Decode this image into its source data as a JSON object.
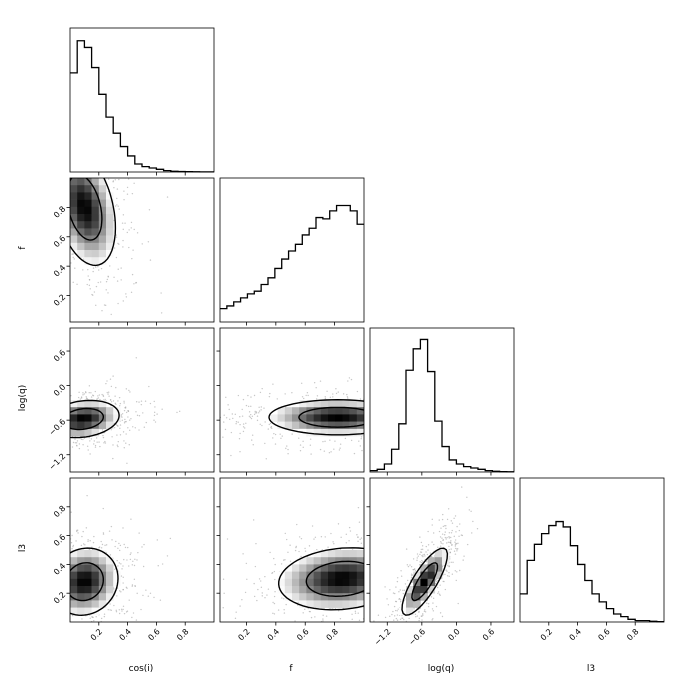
{
  "chart_data": {
    "type": "corner",
    "parameters": [
      {
        "key": "cosi",
        "label": "cos(i)",
        "range": [
          0.0,
          1.0
        ],
        "ticks": [
          0.2,
          0.4,
          0.6,
          0.8
        ],
        "tick_labels": [
          "0.2",
          "0.4",
          "0.6",
          "0.8"
        ]
      },
      {
        "key": "f",
        "label": "f",
        "range": [
          0.02,
          1.0
        ],
        "ticks": [
          0.2,
          0.4,
          0.6,
          0.8
        ],
        "tick_labels": [
          "0.2",
          "0.4",
          "0.6",
          "0.8"
        ]
      },
      {
        "key": "logq",
        "label": "log(q)",
        "range": [
          -1.5,
          1.0
        ],
        "ticks": [
          -1.2,
          -0.6,
          0.0,
          0.6
        ],
        "tick_labels": [
          "−1.2",
          "−0.6",
          "0.0",
          "0.6"
        ]
      },
      {
        "key": "l3",
        "label": "l3",
        "range": [
          0.0,
          1.0
        ],
        "ticks": [
          0.2,
          0.4,
          0.6,
          0.8
        ],
        "tick_labels": [
          "0.2",
          "0.4",
          "0.6",
          "0.8"
        ]
      }
    ],
    "histograms": [
      {
        "param": "cosi",
        "bin_edges_range": [
          0.0,
          1.0
        ],
        "counts": [
          0.74,
          0.98,
          0.93,
          0.78,
          0.58,
          0.41,
          0.29,
          0.19,
          0.12,
          0.06,
          0.04,
          0.03,
          0.02,
          0.01,
          0.005,
          0.004,
          0.003,
          0.002,
          0.001,
          0.001
        ]
      },
      {
        "param": "f",
        "bin_edges_range": [
          0.02,
          1.0
        ],
        "counts": [
          0.1,
          0.12,
          0.15,
          0.18,
          0.21,
          0.23,
          0.28,
          0.33,
          0.4,
          0.47,
          0.53,
          0.58,
          0.65,
          0.7,
          0.78,
          0.77,
          0.83,
          0.87,
          0.87,
          0.83,
          0.73
        ]
      },
      {
        "param": "logq",
        "bin_edges_range": [
          -1.5,
          1.0
        ],
        "counts": [
          0.01,
          0.02,
          0.06,
          0.17,
          0.36,
          0.76,
          0.92,
          0.99,
          0.75,
          0.38,
          0.19,
          0.09,
          0.06,
          0.04,
          0.03,
          0.02,
          0.01,
          0.005,
          0.003,
          0.002
        ]
      },
      {
        "param": "l3",
        "bin_edges_range": [
          0.0,
          1.0
        ],
        "counts": [
          0.21,
          0.46,
          0.58,
          0.66,
          0.72,
          0.75,
          0.71,
          0.57,
          0.43,
          0.31,
          0.21,
          0.15,
          0.1,
          0.06,
          0.04,
          0.02,
          0.01,
          0.01,
          0.005,
          0.003
        ]
      }
    ],
    "joint_distributions": [
      {
        "x": "cosi",
        "y": "f",
        "peak": [
          0.1,
          0.8
        ],
        "sigma": [
          0.12,
          0.22
        ],
        "corr": -0.35
      },
      {
        "x": "cosi",
        "y": "logq",
        "peak": [
          0.09,
          -0.58
        ],
        "sigma": [
          0.14,
          0.18
        ],
        "corr": 0.2
      },
      {
        "x": "f",
        "y": "logq",
        "peak": [
          0.82,
          -0.55
        ],
        "sigma": [
          0.26,
          0.17
        ],
        "corr": 0.0
      },
      {
        "x": "cosi",
        "y": "l3",
        "peak": [
          0.1,
          0.28
        ],
        "sigma": [
          0.13,
          0.13
        ],
        "corr": 0.1
      },
      {
        "x": "f",
        "y": "l3",
        "peak": [
          0.85,
          0.3
        ],
        "sigma": [
          0.24,
          0.12
        ],
        "corr": 0.15
      },
      {
        "x": "logq",
        "y": "l3",
        "peak": [
          -0.55,
          0.28
        ],
        "sigma": [
          0.22,
          0.13
        ],
        "corr": 0.8
      }
    ],
    "contour_levels": 2,
    "grid": false,
    "legend": "none",
    "colors": {
      "hist": "#000000",
      "density": "#000000",
      "scatter": "#808080"
    }
  }
}
